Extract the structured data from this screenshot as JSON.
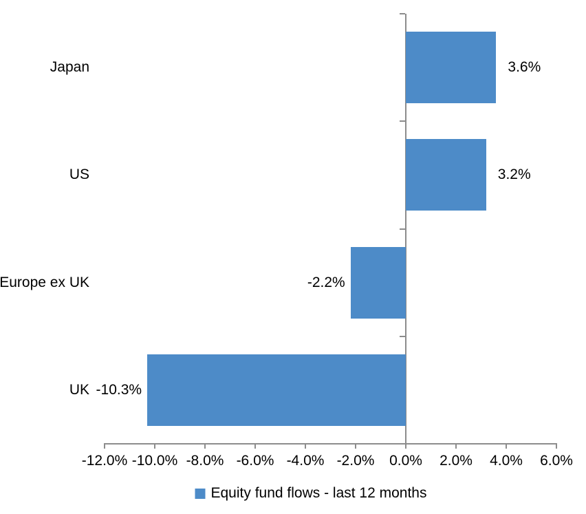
{
  "chart_data": {
    "type": "bar",
    "orientation": "horizontal",
    "title": "",
    "categories": [
      "Japan",
      "US",
      "Europe ex UK",
      "UK"
    ],
    "values": [
      3.6,
      3.2,
      -2.2,
      -10.3
    ],
    "value_labels": [
      "3.6%",
      "3.2%",
      "-2.2%",
      "-10.3%"
    ],
    "series_name": "Equity fund flows - last 12 months",
    "xlim": [
      -12,
      6
    ],
    "x_ticks": [
      -12,
      -10,
      -8,
      -6,
      -4,
      -2,
      0,
      2,
      4,
      6
    ],
    "x_tick_labels": [
      "-12.0%",
      "-10.0%",
      "-8.0%",
      "-6.0%",
      "-4.0%",
      "-2.0%",
      "0.0%",
      "2.0%",
      "4.0%",
      "6.0%"
    ],
    "grid": false,
    "gap_ratio": 0.5,
    "legend_position": "bottom-center",
    "colors": {
      "bar": "#4D8BC8",
      "axis": "#8C8C8C",
      "text": "#000000",
      "background": "#FFFFFF"
    }
  }
}
